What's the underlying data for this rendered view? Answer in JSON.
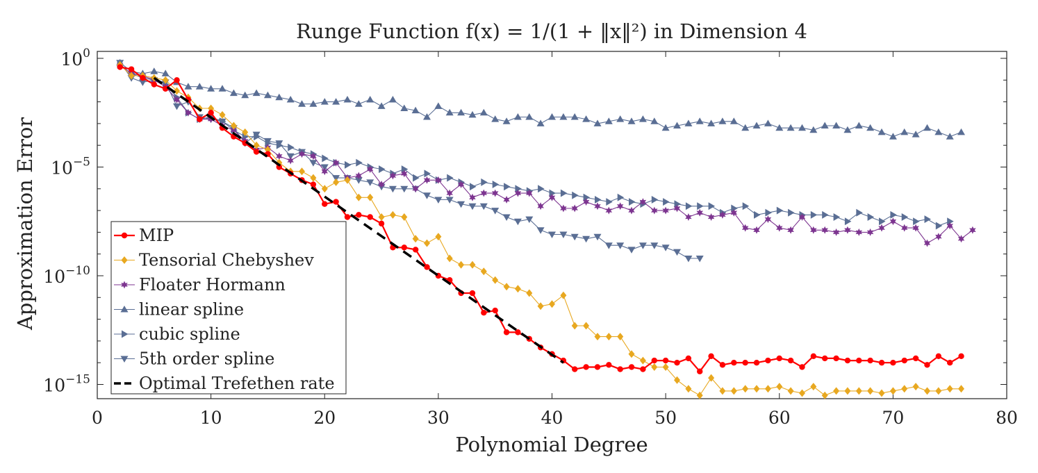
{
  "chart_data": {
    "type": "line",
    "title": "Runge Function f(x) = 1/(1 + ‖x‖²) in Dimension 4",
    "xlabel": "Polynomial Degree",
    "ylabel": "Approximation Error",
    "xlim": [
      0,
      80
    ],
    "ylim_log10": [
      -16,
      0
    ],
    "yscale": "log",
    "x_tick_labels": [
      "0",
      "10",
      "20",
      "30",
      "40",
      "50",
      "60",
      "70",
      "80"
    ],
    "y_tick_labels": [
      {
        "base": "10",
        "exp": "0"
      },
      {
        "base": "10",
        "exp": "−5"
      },
      {
        "base": "10",
        "exp": "−10"
      },
      {
        "base": "10",
        "exp": "−15"
      }
    ],
    "legend_position": "bottom-left",
    "series": [
      {
        "name": "MIP",
        "color": "#ff0000",
        "marker": "circle",
        "x_start": 2,
        "log10_values": [
          -0.4,
          -0.5,
          -0.9,
          -1.2,
          -1.4,
          -1.0,
          -1.9,
          -2.8,
          -2.5,
          -3.2,
          -3.6,
          -3.9,
          -4.3,
          -4.4,
          -5.0,
          -5.3,
          -5.6,
          -5.8,
          -6.7,
          -6.6,
          -7.3,
          -7.2,
          -7.3,
          -7.6,
          -8.7,
          -8.7,
          -8.8,
          -9.6,
          -10.0,
          -10.2,
          -10.8,
          -10.8,
          -11.7,
          -11.6,
          -12.6,
          -12.6,
          -12.9,
          -13.3,
          -13.6,
          -13.9,
          -14.3,
          -14.2,
          -14.2,
          -14.1,
          -14.3,
          -14.2,
          -14.3,
          -13.9,
          -13.9,
          -14.0,
          -13.8,
          -14.4,
          -13.7,
          -14.1,
          -14.0,
          -14.0,
          -14.0,
          -13.9,
          -13.8,
          -13.9,
          -14.2,
          -13.7,
          -13.8,
          -13.8,
          -13.9,
          -13.9,
          -13.9,
          -14.0,
          -14.0,
          -13.9,
          -13.8,
          -14.1,
          -13.7,
          -14.0,
          -13.7
        ]
      },
      {
        "name": "Tensorial Chebyshev",
        "color": "#e8a820",
        "marker": "diamond",
        "x_start": 2,
        "log10_values": [
          -0.3,
          -0.8,
          -0.8,
          -0.9,
          -1.0,
          -1.5,
          -1.8,
          -2.3,
          -2.3,
          -2.6,
          -3.1,
          -3.4,
          -4.0,
          -4.2,
          -4.8,
          -5.2,
          -5.2,
          -5.5,
          -6.0,
          -5.7,
          -5.6,
          -6.4,
          -6.4,
          -7.3,
          -7.2,
          -7.3,
          -8.3,
          -8.5,
          -8.2,
          -9.2,
          -9.5,
          -9.5,
          -9.8,
          -10.2,
          -10.5,
          -10.6,
          -10.8,
          -11.4,
          -11.3,
          -10.9,
          -12.3,
          -12.3,
          -12.8,
          -12.8,
          -12.8,
          -13.6,
          -13.9,
          -14.2,
          -14.2,
          -14.8,
          -15.2,
          -15.5,
          -14.7,
          -15.3,
          -15.3,
          -15.2,
          -15.2,
          -15.2,
          -15.1,
          -15.3,
          -15.4,
          -15.1,
          -15.5,
          -15.3,
          -15.3,
          -15.3,
          -15.3,
          -15.4,
          -15.3,
          -15.2,
          -15.1,
          -15.3,
          -15.3,
          -15.2,
          -15.2
        ]
      },
      {
        "name": "Floater Hormann",
        "color": "#7d3590",
        "marker": "star",
        "x_start": 2,
        "log10_values": [
          -0.3,
          -0.7,
          -0.8,
          -1.0,
          -1.3,
          -1.9,
          -2.5,
          -2.8,
          -2.8,
          -3.1,
          -3.3,
          -3.8,
          -4.2,
          -4.1,
          -4.5,
          -4.7,
          -4.4,
          -4.5,
          -5.2,
          -4.8,
          -5.5,
          -5.4,
          -5.1,
          -5.8,
          -5.4,
          -5.3,
          -6.0,
          -5.6,
          -5.6,
          -6.2,
          -5.8,
          -6.4,
          -6.2,
          -6.2,
          -6.5,
          -6.2,
          -6.2,
          -6.8,
          -6.4,
          -6.9,
          -6.9,
          -6.6,
          -6.8,
          -7.0,
          -6.8,
          -7.0,
          -6.6,
          -7.0,
          -7.0,
          -6.9,
          -7.3,
          -7.1,
          -7.3,
          -7.2,
          -7.1,
          -7.8,
          -7.9,
          -7.4,
          -7.8,
          -7.9,
          -7.3,
          -7.9,
          -7.9,
          -8.0,
          -7.9,
          -8.0,
          -8.0,
          -7.8,
          -7.5,
          -7.8,
          -7.8,
          -8.5,
          -8.2,
          -7.7,
          -8.3,
          -7.9
        ]
      },
      {
        "name": "linear spline",
        "color": "#5a6e94",
        "marker": "triangle-up",
        "x_start": 2,
        "log10_values": [
          -0.2,
          -0.6,
          -0.7,
          -0.6,
          -0.7,
          -1.1,
          -1.3,
          -1.3,
          -1.4,
          -1.4,
          -1.6,
          -1.7,
          -1.6,
          -1.7,
          -1.8,
          -1.9,
          -2.1,
          -2.1,
          -2.0,
          -2.0,
          -1.9,
          -2.1,
          -1.9,
          -2.2,
          -1.9,
          -2.3,
          -2.4,
          -2.7,
          -2.2,
          -2.5,
          -2.5,
          -2.6,
          -2.5,
          -2.8,
          -2.9,
          -2.7,
          -2.7,
          -3.0,
          -2.7,
          -2.7,
          -2.7,
          -2.8,
          -3.0,
          -2.9,
          -2.8,
          -2.9,
          -2.8,
          -2.9,
          -3.2,
          -3.1,
          -3.0,
          -2.9,
          -3.0,
          -2.9,
          -2.9,
          -3.2,
          -3.1,
          -3.0,
          -3.2,
          -3.2,
          -3.2,
          -3.3,
          -3.1,
          -3.1,
          -3.3,
          -3.1,
          -3.2,
          -3.4,
          -3.6,
          -3.4,
          -3.5,
          -3.2,
          -3.4,
          -3.6,
          -3.4
        ]
      },
      {
        "name": "cubic spline",
        "color": "#5a6e94",
        "marker": "triangle-right",
        "x_start": 2,
        "log10_values": [
          -0.3,
          -0.7,
          -0.9,
          -1.0,
          -1.2,
          -1.8,
          -2.5,
          -2.8,
          -2.7,
          -2.9,
          -3.3,
          -3.6,
          -3.6,
          -3.9,
          -4.0,
          -4.1,
          -4.3,
          -4.4,
          -4.6,
          -4.8,
          -4.9,
          -4.8,
          -5.0,
          -5.1,
          -5.3,
          -5.1,
          -5.5,
          -5.3,
          -5.6,
          -5.5,
          -5.7,
          -5.9,
          -5.7,
          -5.8,
          -5.9,
          -6.0,
          -6.1,
          -6.0,
          -6.2,
          -6.2,
          -6.3,
          -6.4,
          -6.5,
          -6.6,
          -6.4,
          -6.6,
          -6.7,
          -6.5,
          -6.6,
          -6.7,
          -6.8,
          -6.8,
          -6.8,
          -7.1,
          -6.9,
          -6.8,
          -7.2,
          -7.1,
          -7.0,
          -7.1,
          -7.2,
          -7.2,
          -7.2,
          -7.3,
          -7.5,
          -7.1,
          -7.3,
          -7.5,
          -7.2,
          -7.3,
          -7.5,
          -7.4,
          -7.7,
          -7.5
        ]
      },
      {
        "name": "5th order spline",
        "color": "#5a6e94",
        "marker": "triangle-down",
        "x_start": 2,
        "log10_values": [
          -0.2,
          -0.9,
          -1.1,
          -1.0,
          -1.1,
          -2.2,
          -2.0,
          -2.7,
          -2.8,
          -2.9,
          -3.2,
          -3.9,
          -3.5,
          -3.8,
          -3.9,
          -4.5,
          -4.3,
          -4.8,
          -5.0,
          -5.5,
          -5.5,
          -5.6,
          -5.7,
          -5.9,
          -6.0,
          -6.0,
          -6.0,
          -6.3,
          -6.5,
          -6.5,
          -6.7,
          -6.8,
          -6.8,
          -7.0,
          -7.3,
          -7.5,
          -7.4,
          -7.9,
          -8.1,
          -8.1,
          -8.2,
          -8.3,
          -8.2,
          -8.6,
          -8.6,
          -8.8,
          -8.6,
          -8.6,
          -8.7,
          -8.9,
          -9.2,
          -9.2
        ]
      },
      {
        "name": "Optimal Trefethen rate",
        "color": "#000000",
        "marker": "none",
        "dashed": true,
        "x": [
          5,
          41
        ],
        "log10_values": [
          -0.9,
          -14.0
        ]
      }
    ]
  }
}
